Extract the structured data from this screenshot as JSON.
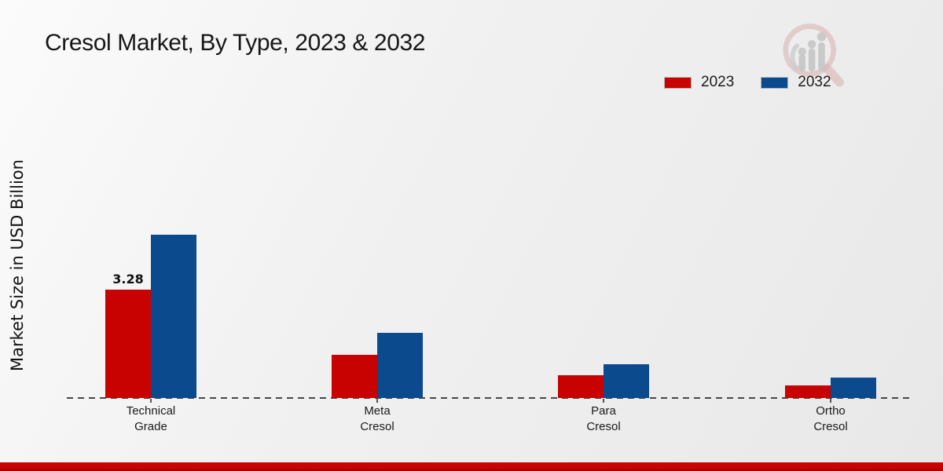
{
  "page": {
    "background_top": "#fbfbfb",
    "background_bottom": "#e8e8e8",
    "footer_bar_color": "#c40404"
  },
  "icons": {
    "watermark": "magnifier-growth-chart-logo"
  },
  "chart_data": {
    "type": "bar",
    "title": "Cresol Market, By Type, 2023 & 2032",
    "xlabel": "",
    "ylabel": "Market Size in USD Billion",
    "categories": [
      "Technical Grade",
      "Meta Cresol",
      "Para Cresol",
      "Ortho Cresol"
    ],
    "categories_lines": [
      [
        "Technical",
        "Grade"
      ],
      [
        "Meta",
        "Cresol"
      ],
      [
        "Para",
        "Cresol"
      ],
      [
        "Ortho",
        "Cresol"
      ]
    ],
    "series": [
      {
        "name": "2023",
        "color": "#c80101",
        "values": [
          3.28,
          1.32,
          0.68,
          0.39
        ]
      },
      {
        "name": "2032",
        "color": "#0b4a8c",
        "values": [
          4.95,
          1.98,
          1.03,
          0.63
        ]
      }
    ],
    "annotation": {
      "text": "3.28",
      "series_index": 0,
      "category_index": 0
    },
    "ylim": [
      0,
      5.2
    ],
    "grid": false,
    "legend_position": "top-right",
    "baseline_style": "dashed"
  }
}
